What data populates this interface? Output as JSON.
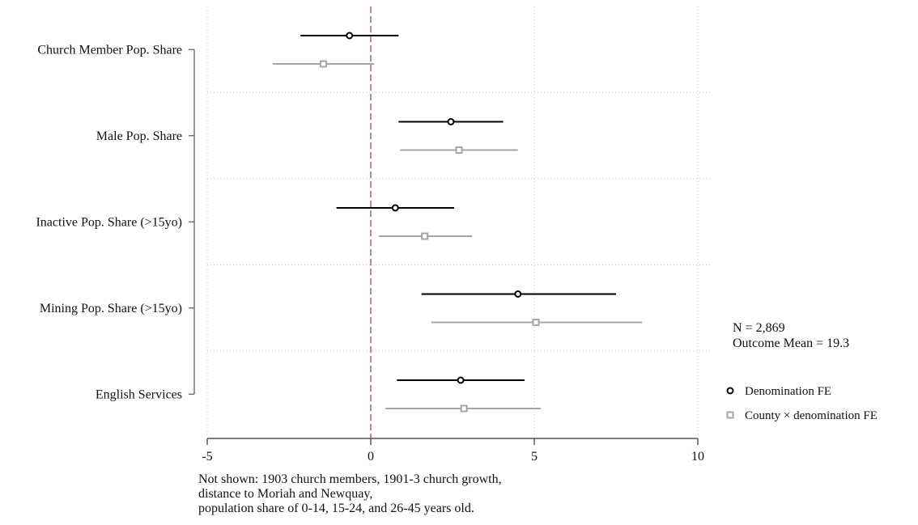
{
  "chart_data": {
    "type": "coefficient-plot",
    "orientation": "horizontal",
    "categories": [
      "Church Member Pop. Share",
      "Male Pop. Share",
      "Inactive Pop. Share (>15yo)",
      "Mining Pop. Share (>15yo)",
      "English Services"
    ],
    "series": [
      {
        "name": "Denomination FE",
        "color": "#000000",
        "marker": "circle",
        "points": [
          {
            "estimate": -0.65,
            "lower": -2.15,
            "upper": 0.85
          },
          {
            "estimate": 2.45,
            "lower": 0.85,
            "upper": 4.05
          },
          {
            "estimate": 0.75,
            "lower": -1.05,
            "upper": 2.55
          },
          {
            "estimate": 4.5,
            "lower": 1.55,
            "upper": 7.5
          },
          {
            "estimate": 2.75,
            "lower": 0.8,
            "upper": 4.7
          }
        ]
      },
      {
        "name": "County × denomination FE",
        "color": "#a6a6a6",
        "marker": "square",
        "points": [
          {
            "estimate": -1.45,
            "lower": -3.0,
            "upper": 0.1
          },
          {
            "estimate": 2.7,
            "lower": 0.9,
            "upper": 4.5
          },
          {
            "estimate": 1.65,
            "lower": 0.25,
            "upper": 3.1
          },
          {
            "estimate": 5.05,
            "lower": 1.85,
            "upper": 8.3
          },
          {
            "estimate": 2.85,
            "lower": 0.45,
            "upper": 5.2
          }
        ]
      }
    ],
    "xlim": [
      -5,
      10
    ],
    "xticks": [
      -5,
      0,
      5,
      10
    ],
    "xtick_labels": [
      "-5",
      "0",
      "5",
      "10"
    ],
    "reference_line": {
      "x": 0,
      "style": "dashed",
      "color": "#b5668e"
    },
    "grid": true,
    "legend_position": "right",
    "stats": [
      "N = 2,869",
      "Outcome Mean = 19.3"
    ],
    "note_lines": [
      "Not shown: 1903 church members, 1901-3 church growth,",
      "distance to Moriah and Newquay,",
      "population share of 0-14, 15-24, and 26-45 years old."
    ]
  }
}
